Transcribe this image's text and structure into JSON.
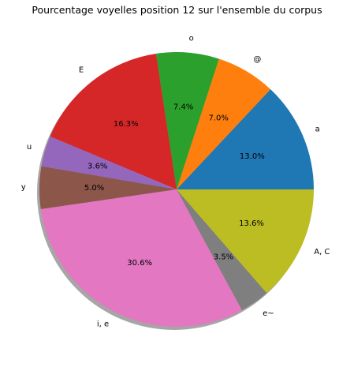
{
  "chart_data": {
    "type": "pie",
    "title": "Pourcentage voyelles position 12 sur l'ensemble du corpus",
    "shadow": true,
    "start_angle_deg": 0,
    "direction": "counterclockwise",
    "slices": [
      {
        "label": "a",
        "value": 13.0,
        "pct_label": "13.0%",
        "color": "#1f77b4"
      },
      {
        "label": "@",
        "value": 7.0,
        "pct_label": "7.0%",
        "color": "#ff7f0e"
      },
      {
        "label": "o",
        "value": 7.4,
        "pct_label": "7.4%",
        "color": "#2ca02c"
      },
      {
        "label": "E",
        "value": 16.3,
        "pct_label": "16.3%",
        "color": "#d62728"
      },
      {
        "label": "u",
        "value": 3.6,
        "pct_label": "3.6%",
        "color": "#9467bd"
      },
      {
        "label": "y",
        "value": 5.0,
        "pct_label": "5.0%",
        "color": "#8c564b"
      },
      {
        "label": "i, e",
        "value": 30.6,
        "pct_label": "30.6%",
        "color": "#e377c2"
      },
      {
        "label": "e~",
        "value": 3.5,
        "pct_label": "3.5%",
        "color": "#7f7f7f"
      },
      {
        "label": "A, C",
        "value": 13.6,
        "pct_label": "13.6%",
        "color": "#bcbd22"
      }
    ]
  }
}
